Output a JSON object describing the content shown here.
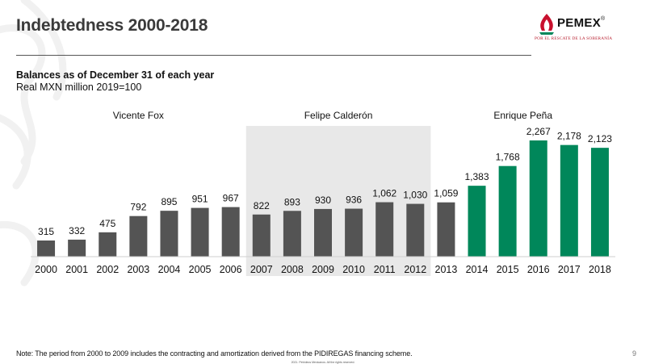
{
  "slide": {
    "title": "Indebtedness 2000-2018",
    "subtitle": "Balances as of December 31 of each year",
    "unit": "Real MXN million 2019=100",
    "footnote": "Note: The period from 2000 to 2009 includes the contracting and amortization derived from the PIDIREGAS financing scheme.",
    "copyright": "2021. Petróleos Mexicanos. All the rights reserved.",
    "page_number": "9"
  },
  "logo": {
    "name": "PEMEX",
    "registered": "®",
    "tagline": "POR EL RESCATE DE LA SOBERANÍA"
  },
  "colors": {
    "bar_dark": "#545454",
    "bar_green": "#00875a",
    "period_shade": "#e8e8e8"
  },
  "chart_data": {
    "type": "bar",
    "title": "",
    "xlabel": "",
    "ylabel": "",
    "categories": [
      "2000",
      "2001",
      "2002",
      "2003",
      "2004",
      "2005",
      "2006",
      "2007",
      "2008",
      "2009",
      "2010",
      "2011",
      "2012",
      "2013",
      "2014",
      "2015",
      "2016",
      "2017",
      "2018"
    ],
    "values": [
      315,
      332,
      475,
      792,
      895,
      951,
      967,
      822,
      893,
      930,
      936,
      1062,
      1030,
      1059,
      1383,
      1768,
      2267,
      2178,
      2123
    ],
    "value_labels": [
      "315",
      "332",
      "475",
      "792",
      "895",
      "951",
      "967",
      "822",
      "893",
      "930",
      "936",
      "1,062",
      "1,030",
      "1,059",
      "1,383",
      "1,768",
      "2,267",
      "2,178",
      "2,123"
    ],
    "ylim": [
      0,
      2267
    ],
    "grid": false,
    "legend": "none",
    "bar_colors": [
      "dark",
      "dark",
      "dark",
      "dark",
      "dark",
      "dark",
      "dark",
      "dark",
      "dark",
      "dark",
      "dark",
      "dark",
      "dark",
      "dark",
      "green",
      "green",
      "green",
      "green",
      "green"
    ],
    "periods": [
      {
        "label": "Vicente Fox",
        "from_index": 0,
        "to_index": 6,
        "shaded": false
      },
      {
        "label": "Felipe Calderón",
        "from_index": 7,
        "to_index": 12,
        "shaded": true
      },
      {
        "label": "Enrique Peña",
        "from_index": 13,
        "to_index": 18,
        "shaded": false
      }
    ]
  }
}
